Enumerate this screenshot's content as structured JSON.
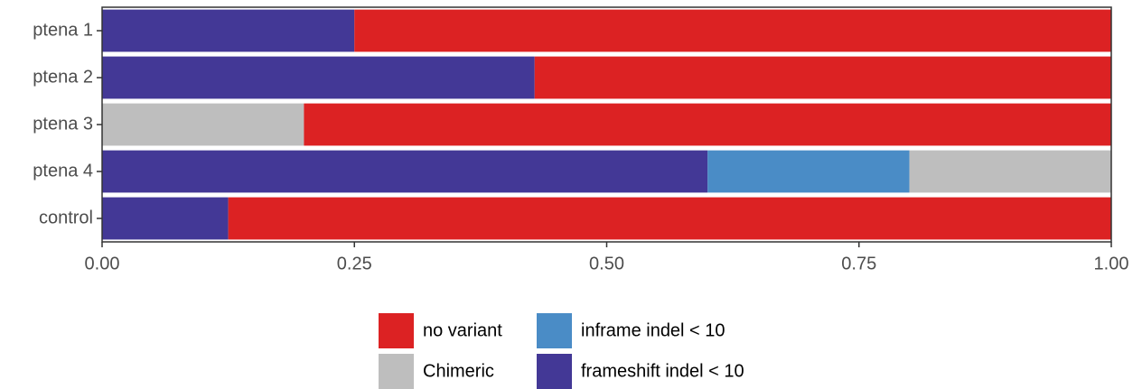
{
  "chart_data": {
    "type": "stacked_barh",
    "categories": [
      "ptena 1",
      "ptena 2",
      "ptena 3",
      "ptena 4",
      "control"
    ],
    "series": [
      {
        "name": "no variant",
        "color": "#dc2223",
        "values": [
          0.75,
          0.5714,
          0.8,
          0,
          0.875
        ]
      },
      {
        "name": "Chimeric",
        "color": "#bebebe",
        "values": [
          0,
          0,
          0.2,
          0.2,
          0
        ]
      },
      {
        "name": "inframe indel < 10",
        "color": "#4a8cc6",
        "values": [
          0,
          0,
          0,
          0.2,
          0
        ]
      },
      {
        "name": "frameshift indel < 10",
        "color": "#433896",
        "values": [
          0.25,
          0.4286,
          0,
          0.6,
          0.125
        ]
      }
    ],
    "xlim": [
      0,
      1
    ],
    "xticks": [
      {
        "value": 0,
        "label": "0.00"
      },
      {
        "value": 0.25,
        "label": "0.25"
      },
      {
        "value": 0.5,
        "label": "0.50"
      },
      {
        "value": 0.75,
        "label": "0.75"
      },
      {
        "value": 1,
        "label": "1.00"
      }
    ],
    "legend": "bottom"
  }
}
